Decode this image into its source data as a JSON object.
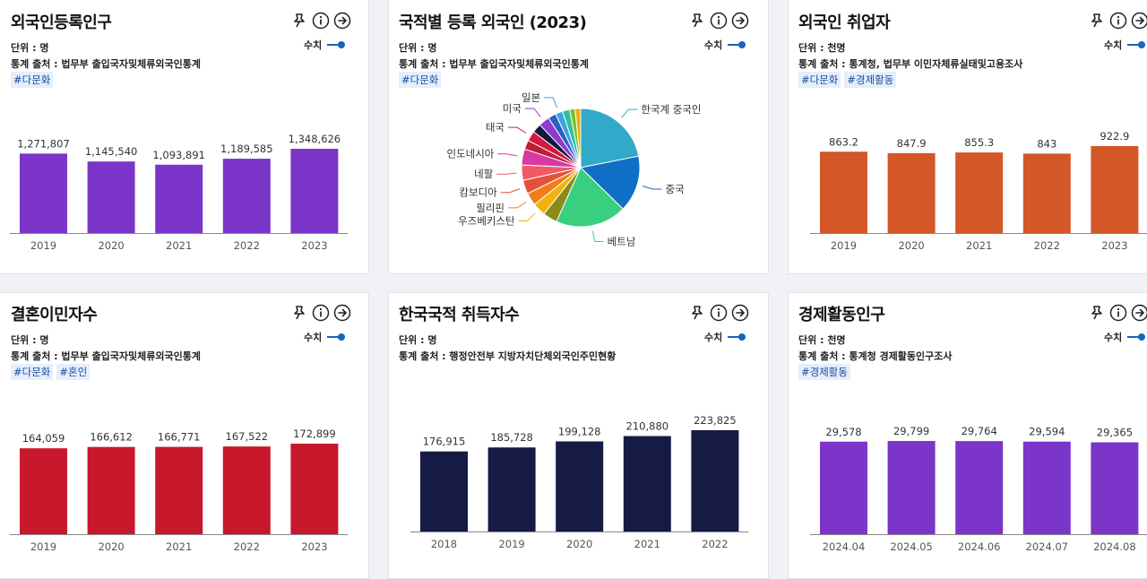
{
  "cards": [
    {
      "title": "외국인등록인구",
      "unit_label": "단위 : ",
      "unit": "명",
      "source_label": "통계 출처 : ",
      "source": "법무부 출입국자및체류외국인통계",
      "tags": [
        "#다문화"
      ],
      "legend": "수치"
    },
    {
      "title": "국적별 등록 외국인 (2023)",
      "unit_label": "단위 : ",
      "unit": "명",
      "source_label": "통계 출처 : ",
      "source": "법무부 출입국자및체류외국인통계",
      "tags": [
        "#다문화"
      ],
      "legend": "수치"
    },
    {
      "title": "외국인 취업자",
      "unit_label": "단위 : ",
      "unit": "천명",
      "source_label": "통계 출처 : ",
      "source": "통계청, 법무부 이민자체류실태및고용조사",
      "tags": [
        "#다문화",
        "#경제활동"
      ],
      "legend": "수치"
    },
    {
      "title": "결혼이민자수",
      "unit_label": "단위 : ",
      "unit": "명",
      "source_label": "통계 출처 : ",
      "source": "법무부 출입국자및체류외국인통계",
      "tags": [
        "#다문화",
        "#혼인"
      ],
      "legend": "수치"
    },
    {
      "title": "한국국적 취득자수",
      "unit_label": "단위 : ",
      "unit": "명",
      "source_label": "통계 출처 : ",
      "source": "행정안전부 지방자치단체외국인주민현황",
      "tags": [],
      "legend": "수치"
    },
    {
      "title": "경제활동인구",
      "unit_label": "단위 : ",
      "unit": "천명",
      "source_label": "통계 출처 : ",
      "source": "통계청 경제활동인구조사",
      "tags": [
        "#경제활동"
      ],
      "legend": "수치"
    }
  ],
  "chart_data": [
    {
      "type": "bar",
      "color": "#7b35c8",
      "categories": [
        "2019",
        "2020",
        "2021",
        "2022",
        "2023"
      ],
      "values": [
        1271807,
        1145540,
        1093891,
        1189585,
        1348626
      ],
      "labels": [
        "1,271,807",
        "1,145,540",
        "1,093,891",
        "1,189,585",
        "1,348,626"
      ],
      "ylim": [
        0,
        1700000
      ]
    },
    {
      "type": "pie",
      "slices": [
        {
          "label": "한국계 중국인",
          "value": 22.0,
          "color": "#31a9c9"
        },
        {
          "label": "중국",
          "value": 15.5,
          "color": "#0f6fc6"
        },
        {
          "label": "베트남",
          "value": 19.5,
          "color": "#38cf7e"
        },
        {
          "label": "",
          "value": 4.0,
          "color": "#8b8b1b"
        },
        {
          "label": "우즈베키스탄",
          "value": 3.6,
          "color": "#f1b30b"
        },
        {
          "label": "필리핀",
          "value": 3.5,
          "color": "#ef7d1a"
        },
        {
          "label": "캄보디아",
          "value": 3.8,
          "color": "#e4513a"
        },
        {
          "label": "네팔",
          "value": 4.2,
          "color": "#f05a66"
        },
        {
          "label": "인도네시아",
          "value": 4.4,
          "color": "#d63aa3"
        },
        {
          "label": "",
          "value": 2.5,
          "color": "#bf1e35"
        },
        {
          "label": "태국",
          "value": 2.8,
          "color": "#d8163e"
        },
        {
          "label": "",
          "value": 2.5,
          "color": "#14183f"
        },
        {
          "label": "미국",
          "value": 3.0,
          "color": "#8e3bd0"
        },
        {
          "label": "",
          "value": 2.2,
          "color": "#2b60c6"
        },
        {
          "label": "일본",
          "value": 2.0,
          "color": "#3fa0e0"
        },
        {
          "label": "",
          "value": 2.0,
          "color": "#2cc0a0"
        },
        {
          "label": "",
          "value": 1.5,
          "color": "#7bbf2b"
        },
        {
          "label": "",
          "value": 1.5,
          "color": "#e3b50a"
        }
      ]
    },
    {
      "type": "bar",
      "color": "#d35727",
      "categories": [
        "2019",
        "2020",
        "2021",
        "2022",
        "2023"
      ],
      "values": [
        863.2,
        847.9,
        855.3,
        843,
        922.9
      ],
      "labels": [
        "863.2",
        "847.9",
        "855.3",
        "843",
        "922.9"
      ],
      "ylim": [
        0,
        1000
      ]
    },
    {
      "type": "bar",
      "color": "#c8182b",
      "categories": [
        "2019",
        "2020",
        "2021",
        "2022",
        "2023"
      ],
      "values": [
        164059,
        166612,
        166771,
        167522,
        172899
      ],
      "labels": [
        "164,059",
        "166,612",
        "166,771",
        "167,522",
        "172,899"
      ],
      "ylim": [
        0,
        180000
      ]
    },
    {
      "type": "bar",
      "color": "#151b45",
      "categories": [
        "2018",
        "2019",
        "2020",
        "2021",
        "2022"
      ],
      "values": [
        176915,
        185728,
        199128,
        210880,
        223825
      ],
      "labels": [
        "176,915",
        "185,728",
        "199,128",
        "210,880",
        "223,825"
      ],
      "ylim": [
        0,
        240000
      ]
    },
    {
      "type": "bar",
      "color": "#7b35c8",
      "categories": [
        "2024.04",
        "2024.05",
        "2024.06",
        "2024.07",
        "2024.08"
      ],
      "values": [
        29578,
        29799,
        29764,
        29594,
        29365
      ],
      "labels": [
        "29,578",
        "29,799",
        "29,764",
        "29,594",
        "29,365"
      ],
      "ylim": [
        0,
        32000
      ]
    }
  ]
}
